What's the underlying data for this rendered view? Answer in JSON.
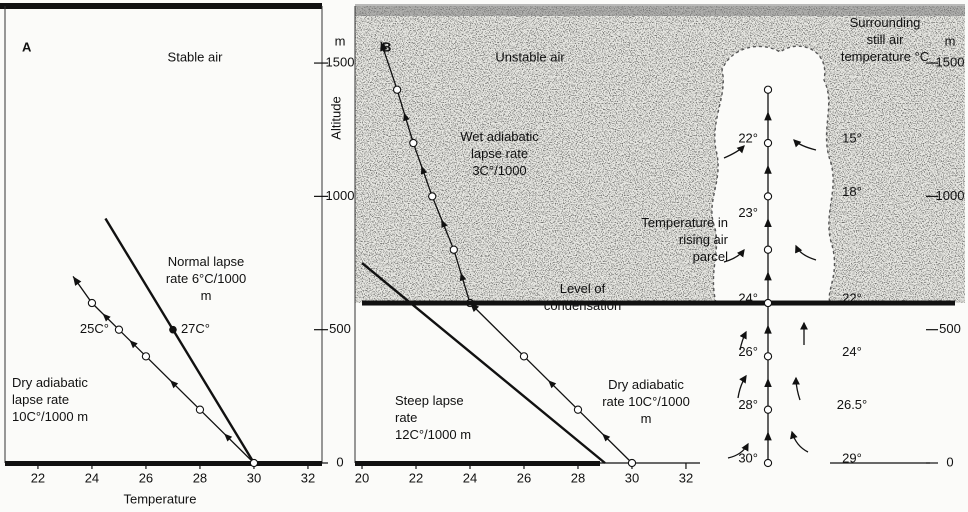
{
  "chart_data": [
    {
      "type": "line",
      "label": "A",
      "title": "Stable air",
      "x_label": "Temperature",
      "y_label": "Altitude",
      "y_unit": "m",
      "xlim": [
        20.78,
        32.52
      ],
      "ylim": [
        0,
        1714
      ],
      "xticks": [
        22,
        24,
        26,
        28,
        30,
        32
      ],
      "yticks": [
        0,
        500,
        1000,
        1500
      ],
      "series": [
        {
          "name": "Normal lapse rate 6°C/1000 m",
          "color": "#111111",
          "x": [
            30,
            24.5
          ],
          "values": [
            0,
            917
          ]
        },
        {
          "name": "Dry adiabatic lapse rate 10C°/1000 m",
          "color": "#111111",
          "x": [
            30,
            28,
            26,
            25,
            24,
            23.3
          ],
          "values": [
            0,
            200,
            400,
            500,
            600,
            700
          ],
          "markers": "circle",
          "arrow": true
        }
      ],
      "points": [
        {
          "label": "27C°",
          "x": 27,
          "y": 500,
          "marker": "dot"
        },
        {
          "label": "25C°",
          "x": 25,
          "y": 500
        }
      ]
    },
    {
      "type": "line",
      "label": "B",
      "title": "Unstable air",
      "y_unit": "m",
      "xlim": [
        19.74,
        32.52
      ],
      "ylim": [
        0,
        1714
      ],
      "xticks": [
        20,
        22,
        24,
        26,
        28,
        30,
        32
      ],
      "yticks": [
        0,
        500,
        1000,
        1500
      ],
      "series": [
        {
          "name": "Steep lapse rate 12C°/1000 m",
          "color": "#111111",
          "x": [
            29,
            20
          ],
          "values": [
            0,
            750
          ]
        },
        {
          "name": "Dry adiabatic rate 10C°/1000 m",
          "color": "#111111",
          "x": [
            30,
            28,
            26,
            24
          ],
          "values": [
            0,
            200,
            400,
            600
          ],
          "markers": "circle",
          "arrow": true
        },
        {
          "name": "Wet adiabatic lapse rate 3C°/1000",
          "color": "#111111",
          "x": [
            24,
            23.4,
            22.6,
            21.9,
            21.3,
            20.7
          ],
          "values": [
            600,
            800,
            1000,
            1200,
            1400,
            1580
          ],
          "markers": "circle",
          "arrow": true
        }
      ],
      "condensation": {
        "label": "Level of condensation",
        "level": 600
      },
      "parcel": {
        "name": "Temperature in rising air parcel",
        "altitudes": [
          0,
          200,
          400,
          600,
          800,
          1000,
          1200,
          1400
        ],
        "temperature_altitudes": [
          0,
          200,
          400,
          600,
          920,
          1200
        ],
        "temperatures": [
          30,
          28,
          26,
          24,
          23,
          22
        ],
        "value_labels": [
          "30°",
          "28°",
          "26°",
          "24°",
          "23°",
          "22°"
        ]
      },
      "surrounding": {
        "name": "Surrounding still air temperature °C",
        "altitudes": [
          0,
          200,
          400,
          600,
          1000,
          1200
        ],
        "temperatures": [
          29,
          26.5,
          24,
          22,
          18,
          15
        ],
        "value_labels": [
          "29°",
          "26.5°",
          "24°",
          "22°",
          "18°",
          "15°"
        ]
      }
    }
  ]
}
